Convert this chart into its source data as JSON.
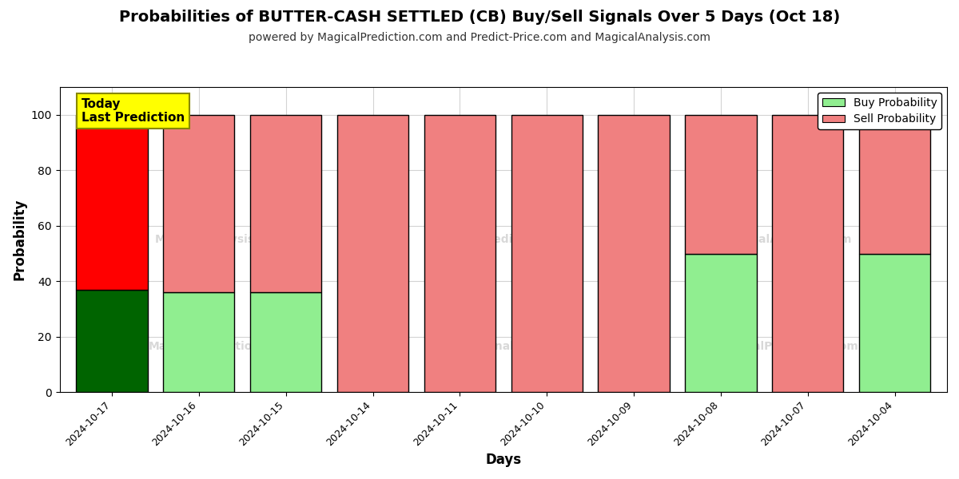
{
  "title": "Probabilities of BUTTER-CASH SETTLED (CB) Buy/Sell Signals Over 5 Days (Oct 18)",
  "subtitle": "powered by MagicalPrediction.com and Predict-Price.com and MagicalAnalysis.com",
  "xlabel": "Days",
  "ylabel": "Probability",
  "categories": [
    "2024-10-17",
    "2024-10-16",
    "2024-10-15",
    "2024-10-14",
    "2024-10-11",
    "2024-10-10",
    "2024-10-09",
    "2024-10-08",
    "2024-10-07",
    "2024-10-04"
  ],
  "buy_values": [
    37,
    36,
    36,
    0,
    0,
    0,
    0,
    50,
    0,
    50
  ],
  "sell_values": [
    63,
    64,
    64,
    100,
    100,
    100,
    100,
    50,
    100,
    50
  ],
  "today_buy_color": "#006400",
  "today_sell_color": "#ff0000",
  "buy_color": "#90ee90",
  "sell_color": "#f08080",
  "today_annotation": "Today\nLast Prediction",
  "today_annotation_bg": "#ffff00",
  "ylim": [
    0,
    110
  ],
  "yticks": [
    0,
    20,
    40,
    60,
    80,
    100
  ],
  "dashed_line_y": 110,
  "legend_buy_label": "Buy Probability",
  "legend_sell_label": "Sell Probability",
  "bar_edgecolor": "#000000",
  "bar_linewidth": 1.0,
  "background_color": "#ffffff",
  "title_fontsize": 14,
  "subtitle_fontsize": 10,
  "bar_width": 0.82
}
